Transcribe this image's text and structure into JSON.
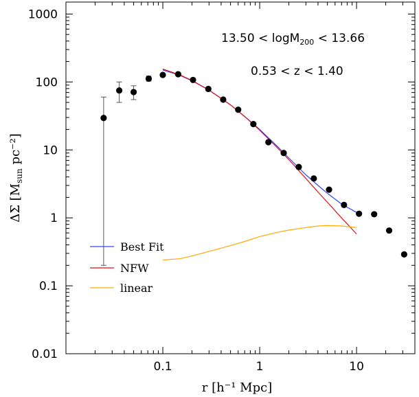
{
  "chart_data": {
    "type": "scatter",
    "xscale": "log",
    "yscale": "log",
    "xlim": [
      0.01,
      40
    ],
    "ylim": [
      0.01,
      1500
    ],
    "xlabel": "r [h⁻¹ Mpc]",
    "ylabel": "ΔΣ [M_sun pc⁻²]",
    "xticks": [
      {
        "value": 0.1,
        "label": "0.1"
      },
      {
        "value": 1,
        "label": "1"
      },
      {
        "value": 10,
        "label": "10"
      }
    ],
    "yticks": [
      {
        "value": 0.01,
        "label": "0.01"
      },
      {
        "value": 0.1,
        "label": "0.1"
      },
      {
        "value": 1,
        "label": "1"
      },
      {
        "value": 10,
        "label": "10"
      },
      {
        "value": 100,
        "label": "100"
      },
      {
        "value": 1000,
        "label": "1000"
      }
    ],
    "annotations": [
      {
        "text": "13.50 < logM200 < 13.66"
      },
      {
        "text": "0.53 < z < 1.40"
      }
    ],
    "points": [
      {
        "x": 0.0245,
        "y": 29.5,
        "err_low": 0.2,
        "err_high": 60
      },
      {
        "x": 0.0355,
        "y": 75,
        "err_low": 50,
        "err_high": 100
      },
      {
        "x": 0.05,
        "y": 71,
        "err_low": 55,
        "err_high": 88
      },
      {
        "x": 0.0715,
        "y": 112,
        "err_low": 103,
        "err_high": 122
      },
      {
        "x": 0.1,
        "y": 127
      },
      {
        "x": 0.144,
        "y": 130
      },
      {
        "x": 0.205,
        "y": 107
      },
      {
        "x": 0.295,
        "y": 79
      },
      {
        "x": 0.42,
        "y": 55
      },
      {
        "x": 0.6,
        "y": 39
      },
      {
        "x": 0.86,
        "y": 24
      },
      {
        "x": 1.23,
        "y": 13
      },
      {
        "x": 1.77,
        "y": 9
      },
      {
        "x": 2.53,
        "y": 5.6
      },
      {
        "x": 3.62,
        "y": 3.8
      },
      {
        "x": 5.2,
        "y": 2.6
      },
      {
        "x": 7.42,
        "y": 1.55
      },
      {
        "x": 10.6,
        "y": 1.15
      },
      {
        "x": 15.2,
        "y": 1.13
      },
      {
        "x": 21.7,
        "y": 0.65
      },
      {
        "x": 31,
        "y": 0.29
      }
    ],
    "series": [
      {
        "name": "Best Fit",
        "color": "#3344ff",
        "x": [
          0.1,
          0.15,
          0.2,
          0.3,
          0.5,
          0.7,
          1.0,
          1.5,
          2.0,
          3.0,
          4.0,
          5.0,
          7.0,
          10.0
        ],
        "y": [
          150,
          125,
          104,
          76,
          46,
          31,
          20,
          11.5,
          7.6,
          4.3,
          3.0,
          2.3,
          1.6,
          1.2
        ]
      },
      {
        "name": "NFW",
        "color": "#dd1111",
        "x": [
          0.1,
          0.15,
          0.2,
          0.3,
          0.5,
          0.7,
          1.0,
          1.5,
          2.0,
          3.0,
          4.0,
          5.0,
          7.0,
          10.0
        ],
        "y": [
          155,
          127,
          105,
          76,
          46,
          31,
          19.5,
          11,
          7.2,
          3.8,
          2.4,
          1.7,
          1.0,
          0.58
        ]
      },
      {
        "name": "linear",
        "color": "#ffaa00",
        "x": [
          0.1,
          0.15,
          0.2,
          0.3,
          0.5,
          0.7,
          1.0,
          1.5,
          2.0,
          3.0,
          4.0,
          5.0,
          7.0,
          10.0
        ],
        "y": [
          0.24,
          0.25,
          0.275,
          0.32,
          0.39,
          0.45,
          0.53,
          0.61,
          0.66,
          0.72,
          0.76,
          0.77,
          0.76,
          0.72
        ]
      }
    ],
    "legend": {
      "position": "bottom-left"
    }
  }
}
